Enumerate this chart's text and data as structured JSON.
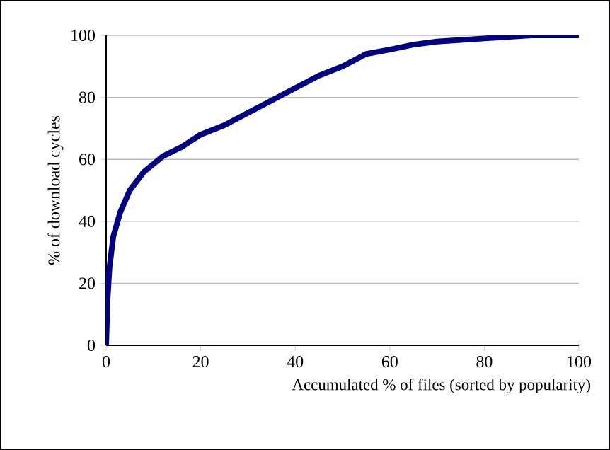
{
  "chart_data": {
    "type": "line",
    "xlabel": "Accumulated % of files (sorted by popularity)",
    "ylabel": "% of download cycles",
    "x": [
      0,
      0.3,
      0.7,
      1.5,
      3,
      5,
      8,
      12,
      16,
      20,
      25,
      30,
      35,
      40,
      45,
      50,
      55,
      60,
      65,
      70,
      80,
      90,
      100
    ],
    "series": [
      {
        "color": "#000080",
        "values": [
          0,
          15,
          25,
          35,
          43,
          50,
          56,
          61,
          64,
          68,
          71,
          75,
          79,
          83,
          87,
          90,
          94,
          95.4,
          97,
          98,
          99,
          100,
          100
        ]
      }
    ],
    "xlim": [
      0,
      100
    ],
    "ylim": [
      0,
      100
    ],
    "xticks": [
      0,
      20,
      40,
      60,
      80,
      100
    ],
    "yticks": [
      0,
      20,
      40,
      60,
      80,
      100
    ],
    "grid": "y",
    "marker": "none",
    "line_style": "solid"
  }
}
